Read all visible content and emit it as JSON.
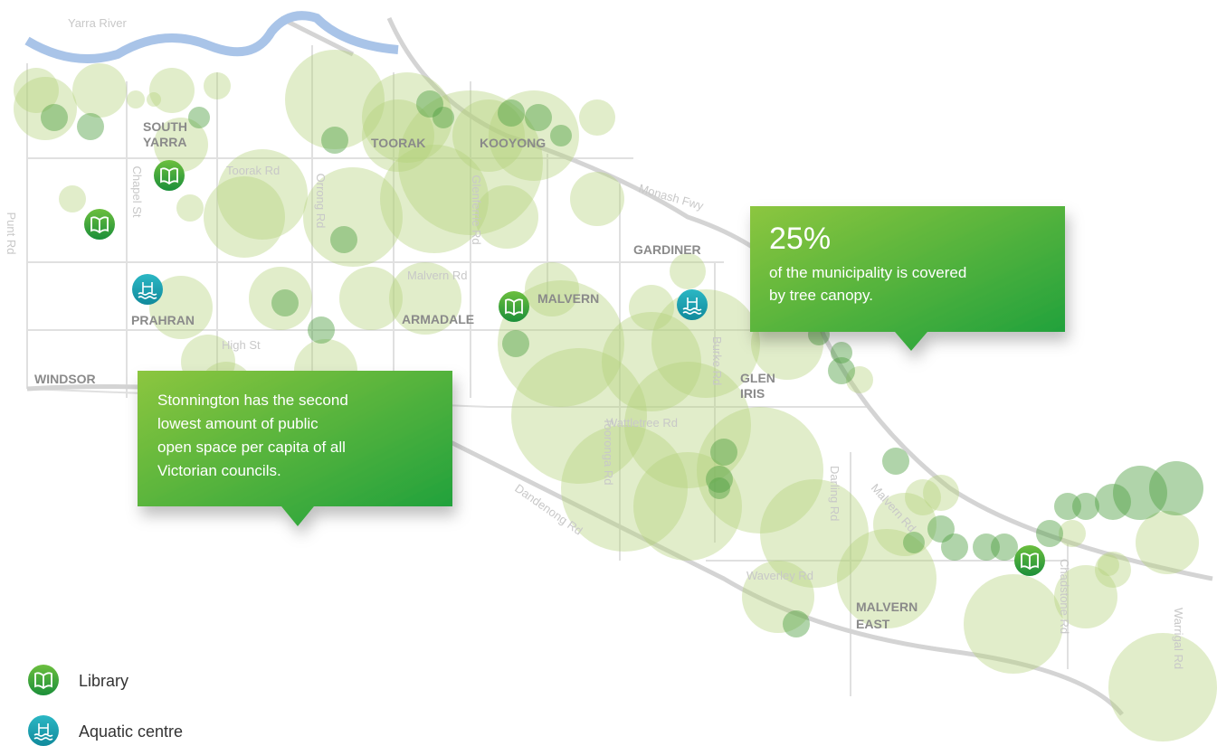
{
  "river": "Yarra River",
  "roads": [
    "Punt Rd",
    "Chapel St",
    "Toorak Rd",
    "Orrong Rd",
    "Glenferrie Rd",
    "Malvern Rd",
    "High St",
    "Monash Fwy",
    "Burke Rd",
    "Wattletree Rd",
    "Tooronga Rd",
    "Dandenong Rd",
    "Darling Rd",
    "Malvern Rd",
    "Waverley Rd",
    "Chadstone Rd",
    "Warrigal Rd"
  ],
  "suburbs": [
    [
      "SOUTH",
      "YARRA"
    ],
    [
      "TOORAK"
    ],
    [
      "KOOYONG"
    ],
    [
      "GARDINER"
    ],
    [
      "MALVERN"
    ],
    [
      "ARMADALE"
    ],
    [
      "PRAHRAN"
    ],
    [
      "WINDSOR"
    ],
    [
      "GLEN",
      "IRIS"
    ],
    [
      "MALVERN",
      "EAST"
    ]
  ],
  "callouts": [
    {
      "headline": "25%",
      "lines": [
        "of the municipality is covered",
        "by tree canopy."
      ]
    },
    {
      "lines": [
        "Stonnington has the second",
        "lowest amount of public",
        "open space per capita of all",
        "Victorian councils."
      ]
    }
  ],
  "legend": [
    "Library",
    "Aquatic centre"
  ]
}
